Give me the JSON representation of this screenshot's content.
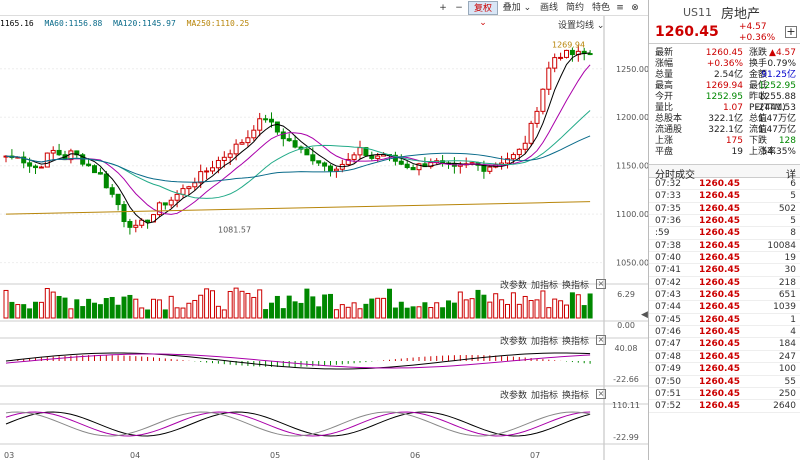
{
  "toolbar": {
    "btn_plus": "+",
    "btn_minus": "−",
    "btn_adjust": "复权 ⌄",
    "btn_overlay": "叠加 ⌄",
    "btn_draw": "画线",
    "btn_f10": "简约",
    "btn_theme": "特色",
    "btn_hide": "隐藏",
    "btn_menu": "≡",
    "btn_close": "⊗"
  },
  "ma": {
    "close": "1165.16",
    "ma60": "MA60:1156.88",
    "ma120": "MA120:1145.97",
    "ma250": "MA250:1110.25",
    "set_label": "设置均线 ⌄",
    "colors": {
      "ma60": "#0a6b8a",
      "ma120": "#0a6b8a",
      "ma250": "#b8860b"
    }
  },
  "yaxis": [
    "1250.00",
    "1200.00",
    "1150.00",
    "1100.00",
    "1050.00"
  ],
  "annotations": {
    "high": "1269.94",
    "low": "1081.57"
  },
  "vol": {
    "top": "6.29",
    "bottom": "0.00",
    "tools": [
      "改参数",
      "加指标",
      "换指标"
    ],
    "close": "×"
  },
  "macd": {
    "top": "40.08",
    "bottom": "-22.66",
    "tools": [
      "改参数",
      "加指标",
      "换指标"
    ],
    "close": "×"
  },
  "kdj": {
    "top": "110.11",
    "bottom": "-22.99",
    "tools": [
      "改参数",
      "加指标",
      "换指标"
    ],
    "close": "×"
  },
  "xaxis": [
    "03",
    "04",
    "05",
    "06",
    "07"
  ],
  "side": {
    "lt": "◀"
  },
  "quote": {
    "code": "US11",
    "name": "房地产",
    "price": "1260.45",
    "change": "+4.57",
    "pct": "+0.36%",
    "add": "+",
    "stats": [
      [
        "最新",
        "1260.45",
        "red",
        "涨跌",
        "▲4.57",
        "red"
      ],
      [
        "涨幅",
        "+0.36%",
        "red",
        "换手",
        "0.79%",
        "black"
      ],
      [
        "总量",
        "2.54亿",
        "black",
        "金额",
        "91.25亿",
        "blue"
      ],
      [
        "最高",
        "1269.94",
        "red",
        "最低",
        "1252.95",
        "green"
      ],
      [
        "今开",
        "1252.95",
        "green",
        "昨收",
        "1255.88",
        "black"
      ],
      [
        "量比",
        "1.07",
        "red",
        "PE(TTM)",
        "-2441.53",
        "black"
      ],
      [
        "总股本",
        "322.1亿",
        "black",
        "总值",
        "1.47万亿",
        "black"
      ],
      [
        "流通股",
        "322.1亿",
        "black",
        "流值",
        "1.47万亿",
        "black"
      ],
      [
        "上涨",
        "175",
        "red",
        "下跌",
        "128",
        "green"
      ],
      [
        "平盘",
        "19",
        "black",
        "上涨率",
        "54.35%",
        "black"
      ]
    ]
  },
  "trades": {
    "title": "分时成交",
    "more": "详",
    "rows": [
      [
        "07:32",
        "1260.45",
        "6"
      ],
      [
        "07:33",
        "1260.45",
        "5"
      ],
      [
        "07:35",
        "1260.45",
        "502"
      ],
      [
        "07:36",
        "1260.45",
        "5"
      ],
      [
        ":59",
        "1260.45",
        "8"
      ],
      [
        "07:38",
        "1260.45",
        "10084"
      ],
      [
        "07:40",
        "1260.45",
        "19"
      ],
      [
        "07:41",
        "1260.45",
        "30"
      ],
      [
        "07:42",
        "1260.45",
        "218"
      ],
      [
        "07:43",
        "1260.45",
        "651"
      ],
      [
        "07:44",
        "1260.45",
        "1039"
      ],
      [
        "07:45",
        "1260.45",
        "1"
      ],
      [
        "07:46",
        "1260.45",
        "4"
      ],
      [
        "07:47",
        "1260.45",
        "184"
      ],
      [
        "07:48",
        "1260.45",
        "247"
      ],
      [
        "07:49",
        "1260.45",
        "100"
      ],
      [
        "07:50",
        "1260.45",
        "55"
      ],
      [
        "07:51",
        "1260.45",
        "250"
      ],
      [
        "07:52",
        "1260.45",
        "2640"
      ]
    ]
  }
}
